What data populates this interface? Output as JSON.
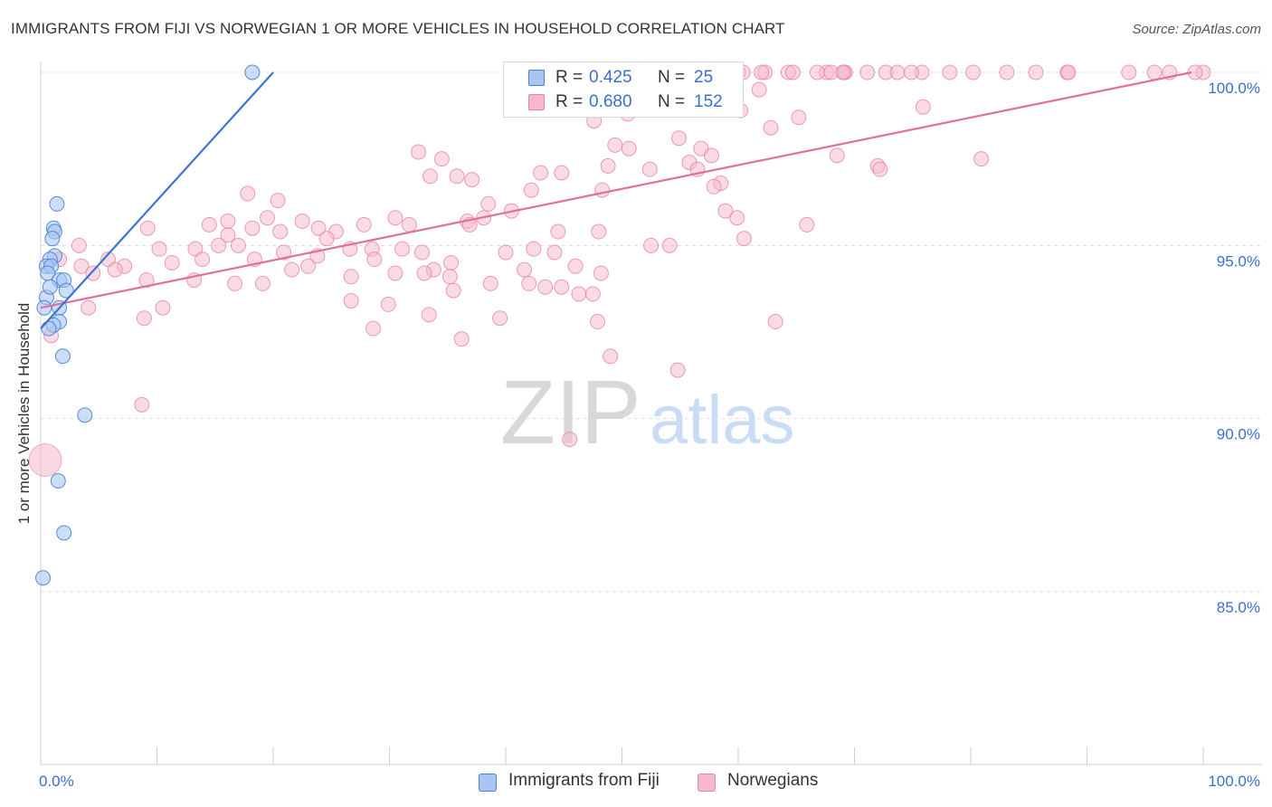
{
  "header": {
    "title": "IMMIGRANTS FROM FIJI VS NORWEGIAN 1 OR MORE VEHICLES IN HOUSEHOLD CORRELATION CHART",
    "source": "Source: ZipAtlas.com"
  },
  "legend_top": {
    "fiji": {
      "r_label": "R =",
      "r_value": "0.425",
      "n_label": "N =",
      "n_value": "25"
    },
    "norwegians": {
      "r_label": "R =",
      "r_value": "0.680",
      "n_label": "N =",
      "n_value": "152"
    }
  },
  "watermark": {
    "zip": "ZIP",
    "atlas": "atlas"
  },
  "colors": {
    "fiji_fill": "#a9c6f2",
    "fiji_stroke": "#4a7fd4",
    "fiji_line": "#3b74d1",
    "nor_fill": "#f6b8cc",
    "nor_stroke": "#e8849f",
    "nor_line": "#e0709a",
    "tick_label": "#3a6fd0"
  },
  "chart_data": {
    "type": "scatter",
    "title": "IMMIGRANTS FROM FIJI VS NORWEGIAN 1 OR MORE VEHICLES IN HOUSEHOLD CORRELATION CHART",
    "xlabel": "",
    "ylabel": "1 or more Vehicles in Household",
    "xlim": [
      0,
      100
    ],
    "ylim": [
      80.5,
      100.8
    ],
    "x_tick_labels": [
      {
        "value": 0,
        "label": "0.0%"
      },
      {
        "value": 100,
        "label": "100.0%"
      }
    ],
    "y_ticks": [
      {
        "value": 100,
        "label": "100.0%"
      },
      {
        "value": 95,
        "label": "95.0%"
      },
      {
        "value": 90,
        "label": "90.0%"
      },
      {
        "value": 85,
        "label": "85.0%"
      }
    ],
    "grid": true,
    "legend": [
      "Immigrants from Fiji",
      "Norwegians"
    ],
    "series": [
      {
        "name": "Immigrants from Fiji",
        "trend": {
          "x1": 0.0,
          "y1": 92.6,
          "x2": 20.0,
          "y2": 100.0
        },
        "points": [
          [
            18.2,
            100.0
          ],
          [
            1.4,
            96.2
          ],
          [
            1.1,
            95.5
          ],
          [
            1.2,
            95.4
          ],
          [
            1.0,
            95.2
          ],
          [
            1.2,
            94.7
          ],
          [
            0.8,
            94.6
          ],
          [
            0.5,
            94.4
          ],
          [
            0.9,
            94.4
          ],
          [
            0.6,
            94.2
          ],
          [
            1.6,
            94.0
          ],
          [
            2.0,
            94.0
          ],
          [
            2.2,
            93.7
          ],
          [
            0.5,
            93.5
          ],
          [
            0.3,
            93.2
          ],
          [
            1.6,
            93.2
          ],
          [
            1.6,
            92.8
          ],
          [
            1.1,
            92.7
          ],
          [
            0.7,
            92.6
          ],
          [
            1.9,
            91.8
          ],
          [
            3.8,
            90.1
          ],
          [
            1.5,
            88.2
          ],
          [
            2.0,
            86.7
          ],
          [
            0.2,
            85.4
          ],
          [
            0.8,
            93.8
          ]
        ]
      },
      {
        "name": "Norwegians",
        "trend": {
          "x1": 0.0,
          "y1": 93.2,
          "x2": 99.0,
          "y2": 100.0
        },
        "points": [
          [
            100.0,
            100.0
          ],
          [
            80.2,
            100.0
          ],
          [
            85.6,
            100.0
          ],
          [
            88.3,
            100.0
          ],
          [
            93.6,
            100.0
          ],
          [
            95.8,
            100.0
          ],
          [
            97.1,
            100.0
          ],
          [
            99.3,
            100.0
          ],
          [
            72.7,
            100.0
          ],
          [
            73.7,
            100.0
          ],
          [
            75.8,
            100.0
          ],
          [
            62.3,
            100.0
          ],
          [
            69.1,
            100.0
          ],
          [
            83.1,
            100.0
          ],
          [
            64.3,
            100.0
          ],
          [
            67.6,
            100.0
          ],
          [
            74.9,
            100.0
          ],
          [
            69.2,
            100.0
          ],
          [
            88.4,
            100.0
          ],
          [
            60.0,
            100.0
          ],
          [
            60.4,
            100.0
          ],
          [
            62.0,
            100.0
          ],
          [
            64.7,
            100.0
          ],
          [
            66.8,
            100.0
          ],
          [
            68.0,
            100.0
          ],
          [
            69.0,
            100.0
          ],
          [
            71.1,
            100.0
          ],
          [
            78.2,
            100.0
          ],
          [
            59.8,
            99.5
          ],
          [
            61.8,
            99.5
          ],
          [
            75.9,
            99.0
          ],
          [
            60.2,
            98.9
          ],
          [
            50.5,
            98.8
          ],
          [
            65.2,
            98.7
          ],
          [
            47.6,
            98.6
          ],
          [
            62.8,
            98.4
          ],
          [
            54.9,
            98.1
          ],
          [
            49.4,
            97.9
          ],
          [
            50.6,
            97.8
          ],
          [
            68.5,
            97.6
          ],
          [
            56.8,
            97.8
          ],
          [
            32.5,
            97.7
          ],
          [
            34.5,
            97.5
          ],
          [
            80.9,
            97.5
          ],
          [
            57.7,
            97.6
          ],
          [
            55.8,
            97.4
          ],
          [
            48.8,
            97.3
          ],
          [
            72.0,
            97.3
          ],
          [
            52.4,
            97.2
          ],
          [
            35.8,
            97.0
          ],
          [
            72.2,
            97.2
          ],
          [
            43.0,
            97.1
          ],
          [
            44.8,
            97.1
          ],
          [
            33.5,
            97.0
          ],
          [
            56.5,
            97.2
          ],
          [
            37.1,
            96.9
          ],
          [
            58.5,
            96.8
          ],
          [
            48.3,
            96.6
          ],
          [
            42.2,
            96.6
          ],
          [
            57.9,
            96.7
          ],
          [
            17.8,
            96.5
          ],
          [
            20.4,
            96.3
          ],
          [
            38.5,
            96.2
          ],
          [
            40.5,
            96.0
          ],
          [
            58.9,
            96.0
          ],
          [
            19.5,
            95.8
          ],
          [
            30.5,
            95.8
          ],
          [
            38.1,
            95.8
          ],
          [
            36.7,
            95.7
          ],
          [
            22.5,
            95.7
          ],
          [
            59.9,
            95.8
          ],
          [
            36.9,
            95.6
          ],
          [
            31.7,
            95.6
          ],
          [
            65.9,
            95.6
          ],
          [
            14.5,
            95.6
          ],
          [
            16.1,
            95.7
          ],
          [
            18.2,
            95.5
          ],
          [
            20.6,
            95.4
          ],
          [
            27.8,
            95.6
          ],
          [
            23.9,
            95.5
          ],
          [
            25.4,
            95.4
          ],
          [
            9.2,
            95.5
          ],
          [
            44.5,
            95.4
          ],
          [
            48.0,
            95.4
          ],
          [
            60.5,
            95.2
          ],
          [
            24.6,
            95.2
          ],
          [
            16.1,
            95.3
          ],
          [
            3.3,
            95.0
          ],
          [
            10.2,
            94.9
          ],
          [
            26.6,
            94.9
          ],
          [
            28.5,
            94.9
          ],
          [
            31.1,
            94.9
          ],
          [
            42.4,
            94.9
          ],
          [
            44.2,
            94.8
          ],
          [
            52.5,
            95.0
          ],
          [
            54.1,
            95.0
          ],
          [
            13.3,
            94.9
          ],
          [
            15.3,
            95.0
          ],
          [
            17.0,
            95.0
          ],
          [
            20.9,
            94.8
          ],
          [
            13.9,
            94.6
          ],
          [
            18.4,
            94.6
          ],
          [
            32.8,
            94.8
          ],
          [
            40.0,
            94.8
          ],
          [
            23.8,
            94.7
          ],
          [
            28.7,
            94.6
          ],
          [
            5.8,
            94.6
          ],
          [
            11.3,
            94.5
          ],
          [
            1.6,
            94.6
          ],
          [
            7.2,
            94.4
          ],
          [
            3.5,
            94.4
          ],
          [
            6.4,
            94.3
          ],
          [
            23.0,
            94.4
          ],
          [
            33.8,
            94.3
          ],
          [
            35.3,
            94.5
          ],
          [
            41.6,
            94.3
          ],
          [
            46.0,
            94.4
          ],
          [
            48.2,
            94.2
          ],
          [
            21.6,
            94.3
          ],
          [
            4.5,
            94.2
          ],
          [
            9.1,
            94.0
          ],
          [
            13.2,
            94.0
          ],
          [
            16.7,
            93.9
          ],
          [
            19.1,
            93.9
          ],
          [
            26.7,
            94.1
          ],
          [
            30.5,
            94.2
          ],
          [
            33.0,
            94.2
          ],
          [
            35.2,
            94.1
          ],
          [
            38.7,
            93.9
          ],
          [
            42.0,
            93.9
          ],
          [
            43.4,
            93.8
          ],
          [
            46.3,
            93.6
          ],
          [
            35.5,
            93.7
          ],
          [
            44.8,
            93.8
          ],
          [
            47.5,
            93.6
          ],
          [
            10.5,
            93.2
          ],
          [
            26.7,
            93.4
          ],
          [
            29.9,
            93.3
          ],
          [
            33.4,
            93.0
          ],
          [
            4.1,
            93.2
          ],
          [
            8.9,
            92.9
          ],
          [
            39.5,
            92.9
          ],
          [
            28.6,
            92.6
          ],
          [
            47.9,
            92.8
          ],
          [
            63.2,
            92.8
          ],
          [
            36.2,
            92.3
          ],
          [
            49.0,
            91.8
          ],
          [
            54.8,
            91.4
          ],
          [
            8.7,
            90.4
          ],
          [
            45.5,
            89.4
          ],
          [
            0.9,
            92.4
          ]
        ]
      }
    ]
  },
  "bottom_legend": {
    "fiji_label": "Immigrants from Fiji",
    "nor_label": "Norwegians"
  }
}
